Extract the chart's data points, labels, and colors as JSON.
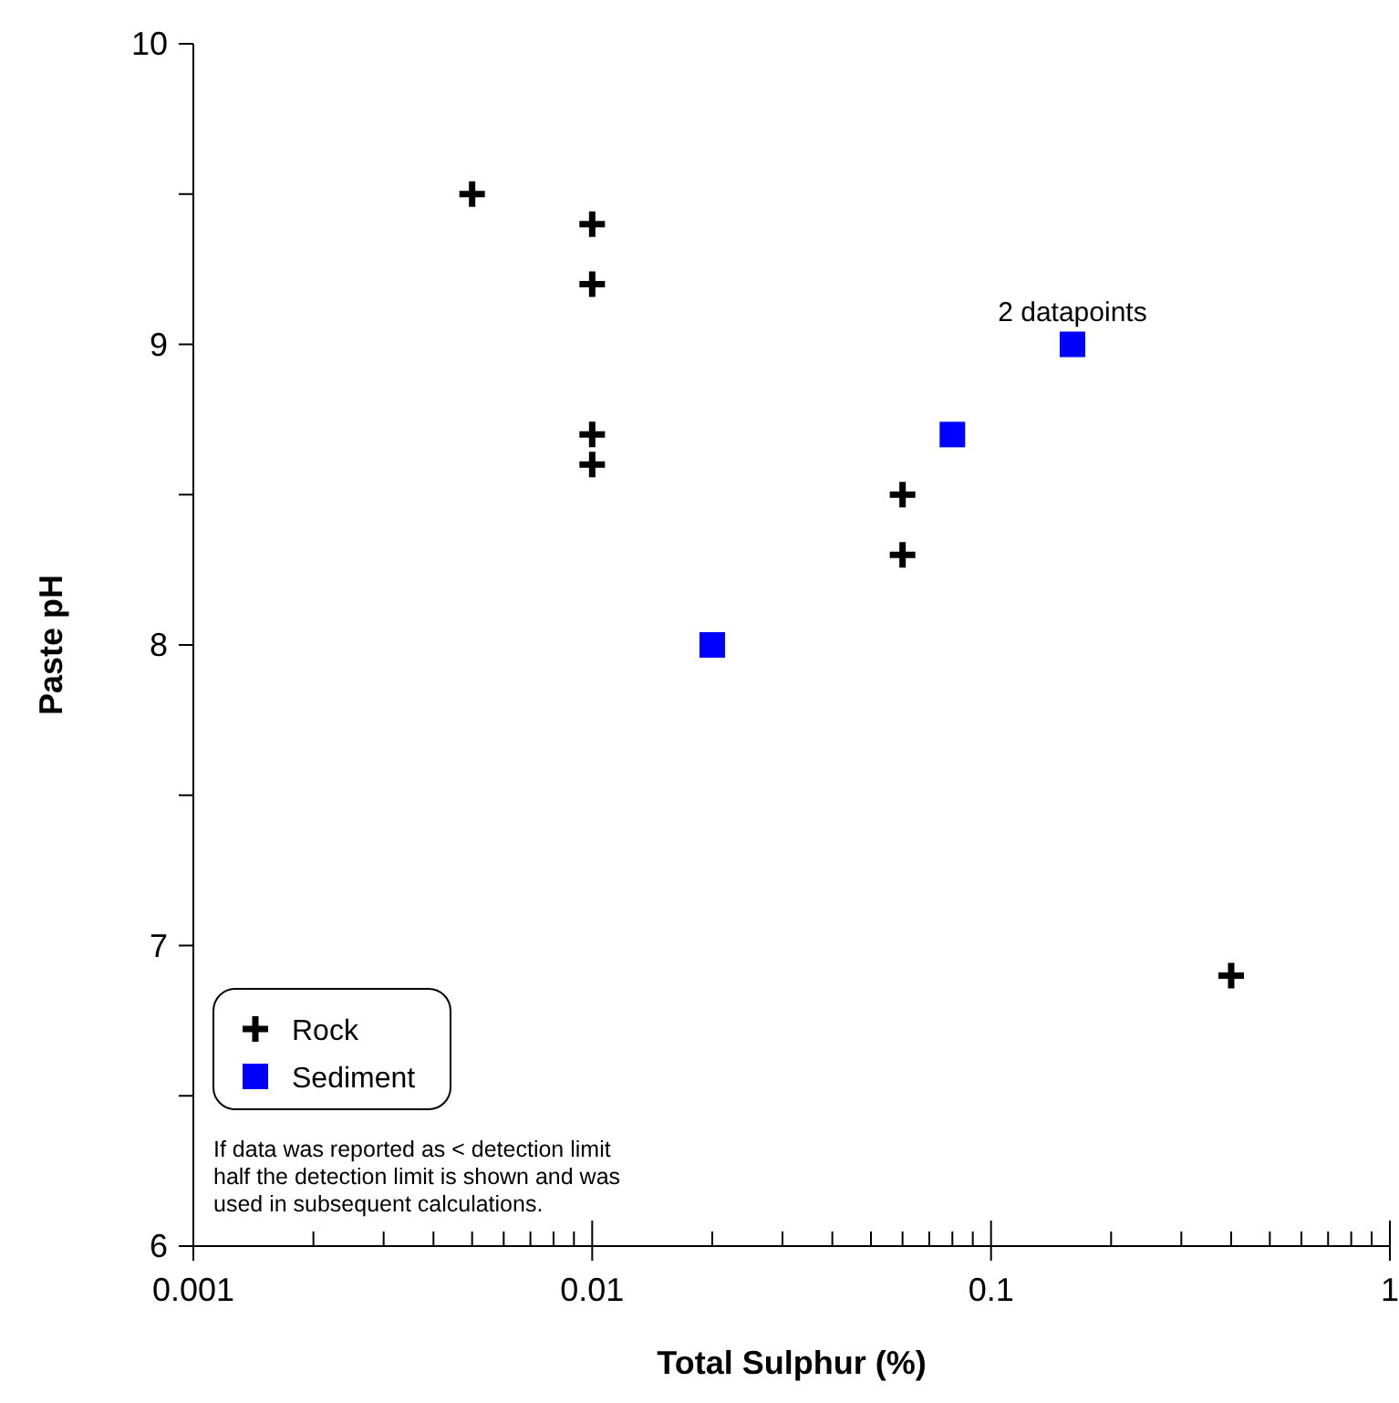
{
  "chart_data": {
    "type": "scatter",
    "xlabel": "Total Sulphur (%)",
    "ylabel": "Paste pH",
    "log": "x",
    "grid": false,
    "legend": "bottom left",
    "xlim": [
      0.001,
      1
    ],
    "ylim": [
      6,
      10
    ],
    "xticks": [
      {
        "value": 0.001,
        "label": "0.001"
      },
      {
        "value": 0.002,
        "label": null
      },
      {
        "value": 0.003,
        "label": null
      },
      {
        "value": 0.004,
        "label": null
      },
      {
        "value": 0.005,
        "label": null
      },
      {
        "value": 0.006,
        "label": null
      },
      {
        "value": 0.007,
        "label": null
      },
      {
        "value": 0.008,
        "label": null
      },
      {
        "value": 0.009,
        "label": null
      },
      {
        "value": 0.01,
        "label": "0.01"
      },
      {
        "value": 0.02,
        "label": null
      },
      {
        "value": 0.03,
        "label": null
      },
      {
        "value": 0.04,
        "label": null
      },
      {
        "value": 0.05,
        "label": null
      },
      {
        "value": 0.06,
        "label": null
      },
      {
        "value": 0.07,
        "label": null
      },
      {
        "value": 0.08,
        "label": null
      },
      {
        "value": 0.09,
        "label": null
      },
      {
        "value": 0.1,
        "label": "0.1"
      },
      {
        "value": 0.2,
        "label": null
      },
      {
        "value": 0.3,
        "label": null
      },
      {
        "value": 0.4,
        "label": null
      },
      {
        "value": 0.5,
        "label": null
      },
      {
        "value": 0.6,
        "label": null
      },
      {
        "value": 0.7,
        "label": null
      },
      {
        "value": 0.8,
        "label": null
      },
      {
        "value": 0.9,
        "label": null
      },
      {
        "value": 1,
        "label": "1"
      }
    ],
    "yticks": [
      6,
      {
        "value": 6.5,
        "label": null
      },
      7,
      {
        "value": 7.5,
        "label": null
      },
      8,
      {
        "value": 8.5,
        "label": null
      },
      9,
      {
        "value": 9.5,
        "label": null
      },
      10
    ],
    "series": [
      {
        "name": "Rock",
        "color": "#000000",
        "marker": "cross",
        "x": [
          0.005,
          0.01,
          0.01,
          0.01,
          0.01,
          0.06,
          0.06,
          0.4
        ],
        "values": [
          9.5,
          9.4,
          9.2,
          8.7,
          8.6,
          8.5,
          8.3,
          6.9
        ]
      },
      {
        "name": "Sediment",
        "color": "#0000ff",
        "marker": "square",
        "x": [
          0.02,
          0.08,
          0.16
        ],
        "values": [
          8.0,
          8.7,
          9.0
        ]
      }
    ],
    "annotations": [
      {
        "text": "2 datapoints",
        "x": 0.16,
        "y": 9.0
      },
      "If data was reported as < detection limit\nhalf the detection limit is shown and was\nused in subsequent calculations."
    ]
  }
}
